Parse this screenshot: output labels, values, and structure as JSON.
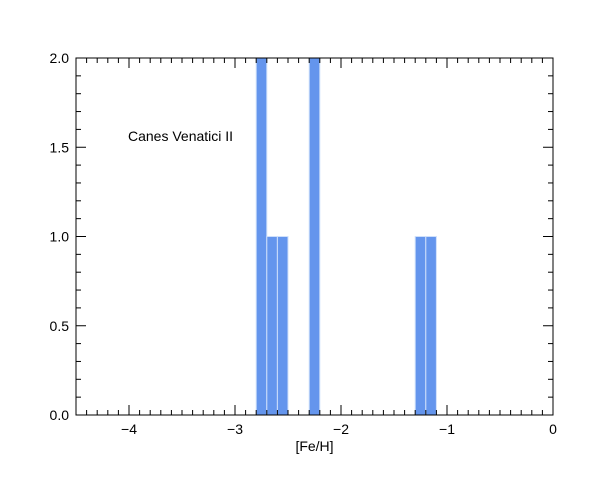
{
  "chart_data": {
    "type": "bar",
    "subtype": "histogram",
    "xlabel": "[Fe/H]",
    "ylabel": "",
    "xlim": [
      -4.5,
      0
    ],
    "ylim": [
      0,
      2.0
    ],
    "bin_width": 0.1,
    "bar_color": "#6495ED",
    "bar_edge_color": "#cfe0fb",
    "x_ticks": [
      {
        "value": -4,
        "label": "−4"
      },
      {
        "value": -3,
        "label": "−3"
      },
      {
        "value": -2,
        "label": "−2"
      },
      {
        "value": -1,
        "label": "−1"
      },
      {
        "value": 0,
        "label": "0"
      }
    ],
    "y_ticks": [
      {
        "value": 0.0,
        "label": "0.0"
      },
      {
        "value": 0.5,
        "label": "0.5"
      },
      {
        "value": 1.0,
        "label": "1.0"
      },
      {
        "value": 1.5,
        "label": "1.5"
      },
      {
        "value": 2.0,
        "label": "2.0"
      }
    ],
    "annotation": "Canes Venatici II",
    "bins": [
      {
        "x0": -2.8,
        "x1": -2.7,
        "count": 2
      },
      {
        "x0": -2.7,
        "x1": -2.6,
        "count": 1
      },
      {
        "x0": -2.6,
        "x1": -2.5,
        "count": 1
      },
      {
        "x0": -2.3,
        "x1": -2.2,
        "count": 2
      },
      {
        "x0": -1.3,
        "x1": -1.2,
        "count": 1
      },
      {
        "x0": -1.2,
        "x1": -1.1,
        "count": 1
      }
    ],
    "grid": false
  }
}
